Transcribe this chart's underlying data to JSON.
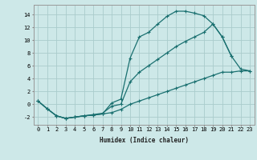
{
  "xlabel": "Humidex (Indice chaleur)",
  "background_color": "#cde8e8",
  "grid_color": "#aacccc",
  "line_color": "#1a7070",
  "xlim": [
    -0.5,
    23.5
  ],
  "ylim": [
    -3.2,
    15.5
  ],
  "xticks": [
    0,
    1,
    2,
    3,
    4,
    5,
    6,
    7,
    8,
    9,
    10,
    11,
    12,
    13,
    14,
    15,
    16,
    17,
    18,
    19,
    20,
    21,
    22,
    23
  ],
  "yticks": [
    -2,
    0,
    2,
    4,
    6,
    8,
    10,
    12,
    14
  ],
  "curve1_x": [
    0,
    1,
    2,
    3,
    4,
    5,
    6,
    7,
    8,
    9,
    10,
    11,
    12,
    13,
    14,
    15,
    16,
    17,
    18,
    19,
    20,
    21
  ],
  "curve1_y": [
    0.5,
    -0.7,
    -1.8,
    -2.2,
    -2.0,
    -1.8,
    -1.7,
    -1.5,
    0.2,
    0.8,
    7.2,
    10.5,
    11.2,
    12.5,
    13.7,
    14.5,
    14.5,
    14.2,
    13.8,
    12.5,
    10.5,
    7.5
  ],
  "curve2_x": [
    0,
    1,
    2,
    3,
    4,
    5,
    6,
    7,
    8,
    9,
    10,
    11,
    12,
    13,
    14,
    15,
    16,
    17,
    18,
    19,
    20,
    21,
    22,
    23
  ],
  "curve2_y": [
    0.5,
    -0.7,
    -1.8,
    -2.2,
    -2.0,
    -1.8,
    -1.6,
    -1.4,
    -0.3,
    0.0,
    3.5,
    5.0,
    6.0,
    7.0,
    8.0,
    9.0,
    9.8,
    10.5,
    11.2,
    12.5,
    10.5,
    7.5,
    5.5,
    5.2
  ],
  "curve3_x": [
    0,
    1,
    2,
    3,
    4,
    5,
    6,
    7,
    8,
    9,
    10,
    11,
    12,
    13,
    14,
    15,
    16,
    17,
    18,
    19,
    20,
    21,
    22,
    23
  ],
  "curve3_y": [
    0.5,
    -0.7,
    -1.8,
    -2.2,
    -2.0,
    -1.8,
    -1.7,
    -1.5,
    -1.3,
    -0.8,
    0.0,
    0.5,
    1.0,
    1.5,
    2.0,
    2.5,
    3.0,
    3.5,
    4.0,
    4.5,
    5.0,
    5.0,
    5.2,
    5.2
  ]
}
